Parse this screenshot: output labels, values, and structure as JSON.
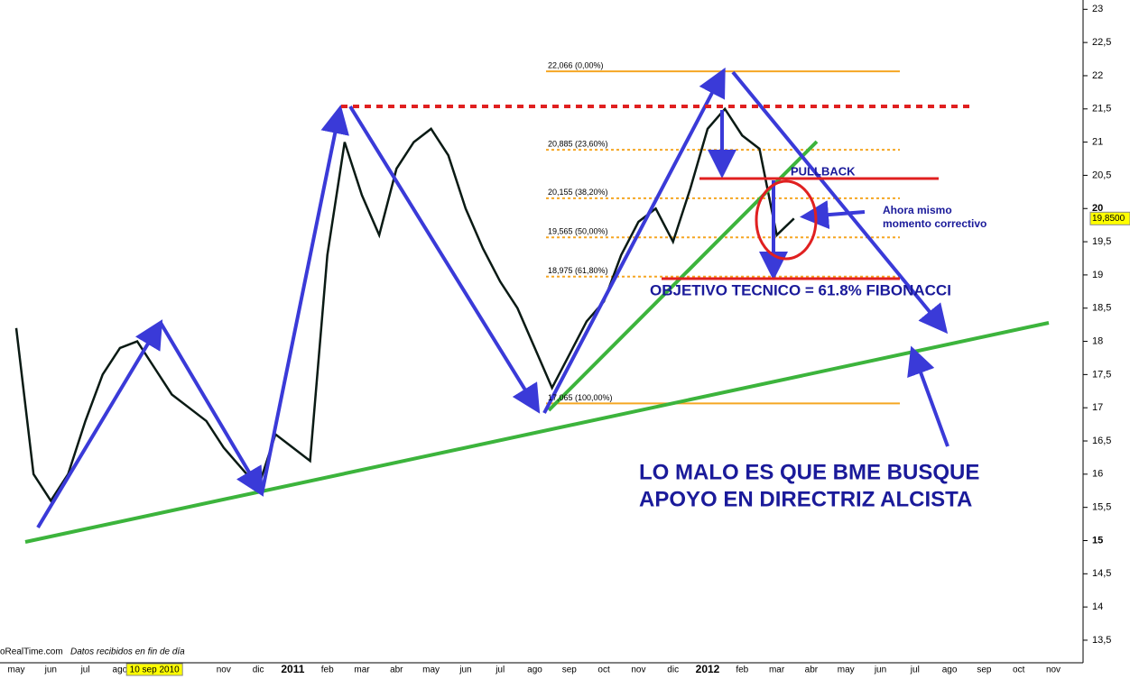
{
  "chart_data": {
    "type": "line",
    "categories": [
      "may",
      null,
      "jun",
      null,
      "jul",
      null,
      "ago",
      null,
      "10 sep 2010",
      null,
      null,
      null,
      "nov",
      null,
      "dic",
      null,
      "2011",
      null,
      "feb",
      null,
      "mar",
      null,
      "abr",
      null,
      "may",
      null,
      "jun",
      null,
      "jul",
      null,
      "ago",
      null,
      "sep",
      null,
      "oct",
      null,
      "nov",
      null,
      "dic",
      null,
      "2012",
      null,
      "feb",
      null,
      "mar",
      null,
      "abr",
      null,
      "may",
      null,
      "jun",
      null,
      "jul",
      null,
      "ago",
      null,
      "sep",
      null,
      "oct",
      null,
      "nov",
      null
    ],
    "series": [
      {
        "name": "BME",
        "color": "#0a1a14",
        "values": [
          18.2,
          16.0,
          15.6,
          16.0,
          16.8,
          17.5,
          17.9,
          18.0,
          17.6,
          17.2,
          17.0,
          16.8,
          16.4,
          16.1,
          15.8,
          16.6,
          16.4,
          16.2,
          19.3,
          21.0,
          20.2,
          19.6,
          20.6,
          21.0,
          21.2,
          20.8,
          20.0,
          19.4,
          18.9,
          18.5,
          17.9,
          17.3,
          17.8,
          18.3,
          18.6,
          19.3,
          19.8,
          20.0,
          19.5,
          20.3,
          21.2,
          21.5,
          21.1,
          20.9,
          19.6,
          19.85,
          null,
          null,
          null,
          null,
          null,
          null,
          null,
          null,
          null,
          null,
          null,
          null,
          null,
          null,
          null,
          null
        ]
      }
    ],
    "ylim": [
      13.16,
      23.14
    ],
    "yticks": [
      {
        "value": 13.5,
        "label": "13,5"
      },
      14,
      {
        "value": 14.5,
        "label": "14,5"
      },
      15,
      {
        "value": 15.5,
        "label": "15,5"
      },
      16,
      {
        "value": 16.5,
        "label": "16,5"
      },
      17,
      {
        "value": 17.5,
        "label": "17,5"
      },
      18,
      {
        "value": 18.5,
        "label": "18,5"
      },
      19,
      {
        "value": 19.5,
        "label": "19,5"
      },
      20,
      {
        "value": 20.5,
        "label": "20,5"
      },
      21,
      {
        "value": 21.5,
        "label": "21,5"
      },
      22,
      {
        "value": 22.5,
        "label": "22,5"
      },
      23
    ],
    "last_price": {
      "value": 19.85,
      "label": "19,8500"
    },
    "fib_levels": [
      {
        "value": 22.066,
        "label": "22,066 (0,00%)"
      },
      {
        "value": 20.885,
        "label": "20,885 (23,60%)"
      },
      {
        "value": 20.155,
        "label": "20,155 (38,20%)"
      },
      {
        "value": 19.565,
        "label": "19,565 (50,00%)"
      },
      {
        "value": 18.975,
        "label": "18,975 (61,80%)"
      },
      {
        "value": 17.065,
        "label": "17,065 (100,00%)"
      }
    ],
    "annotations": [
      "PULLBACK",
      "Ahora mismo",
      "momento correctivo",
      "OBJETIVO TECNICO = 61.8% FIBONACCI",
      "LO MALO ES QUE BME BUSQUE",
      "APOYO EN DIRECTRIZ ALCISTA"
    ],
    "footer": [
      "oRealTime.com",
      "Datos recibidos en fin de día"
    ]
  }
}
